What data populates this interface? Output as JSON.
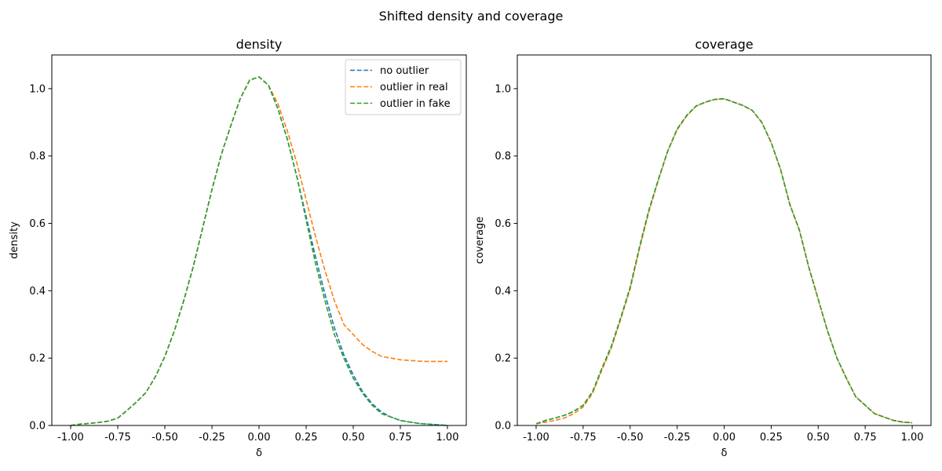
{
  "suptitle": "Shifted density and coverage",
  "colors": {
    "no_outlier": "#1f77b4",
    "outlier_in_real": "#ff7f0e",
    "outlier_in_fake": "#2ca02c"
  },
  "chart_data": [
    {
      "type": "line",
      "title": "density",
      "xlabel": "δ",
      "ylabel": "density",
      "xlim": [
        -1.1,
        1.1
      ],
      "ylim": [
        0.0,
        1.1
      ],
      "xticks": [
        "-1.00",
        "-0.75",
        "-0.50",
        "-0.25",
        "0.00",
        "0.25",
        "0.50",
        "0.75",
        "1.00"
      ],
      "xtick_values": [
        -1.0,
        -0.75,
        -0.5,
        -0.25,
        0.0,
        0.25,
        0.5,
        0.75,
        1.0
      ],
      "yticks": [
        "0.0",
        "0.2",
        "0.4",
        "0.6",
        "0.8",
        "1.0"
      ],
      "ytick_values": [
        0.0,
        0.2,
        0.4,
        0.6,
        0.8,
        1.0
      ],
      "grid": false,
      "legend": "top-right",
      "x": [
        -1.0,
        -0.95,
        -0.9,
        -0.85,
        -0.8,
        -0.75,
        -0.7,
        -0.65,
        -0.6,
        -0.55,
        -0.5,
        -0.45,
        -0.4,
        -0.35,
        -0.3,
        -0.25,
        -0.2,
        -0.15,
        -0.1,
        -0.05,
        0.0,
        0.05,
        0.1,
        0.15,
        0.2,
        0.25,
        0.3,
        0.35,
        0.4,
        0.45,
        0.5,
        0.55,
        0.6,
        0.65,
        0.7,
        0.75,
        0.8,
        0.85,
        0.9,
        0.95,
        1.0
      ],
      "series": [
        {
          "name": "no outlier",
          "values": [
            0.0,
            0.004,
            0.006,
            0.009,
            0.013,
            0.022,
            0.045,
            0.07,
            0.098,
            0.145,
            0.205,
            0.28,
            0.37,
            0.47,
            0.585,
            0.7,
            0.805,
            0.89,
            0.97,
            1.025,
            1.035,
            1.01,
            0.94,
            0.85,
            0.74,
            0.62,
            0.5,
            0.39,
            0.29,
            0.21,
            0.15,
            0.1,
            0.065,
            0.04,
            0.025,
            0.015,
            0.01,
            0.006,
            0.004,
            0.002,
            0.0
          ]
        },
        {
          "name": "outlier in real",
          "values": [
            0.0,
            0.004,
            0.006,
            0.009,
            0.013,
            0.022,
            0.045,
            0.07,
            0.098,
            0.145,
            0.205,
            0.28,
            0.37,
            0.47,
            0.585,
            0.7,
            0.805,
            0.89,
            0.97,
            1.025,
            1.035,
            1.01,
            0.955,
            0.875,
            0.78,
            0.67,
            0.56,
            0.46,
            0.37,
            0.3,
            0.27,
            0.24,
            0.22,
            0.205,
            0.2,
            0.195,
            0.193,
            0.191,
            0.19,
            0.19,
            0.19
          ]
        },
        {
          "name": "outlier in fake",
          "values": [
            0.0,
            0.004,
            0.006,
            0.009,
            0.013,
            0.022,
            0.045,
            0.07,
            0.098,
            0.145,
            0.205,
            0.28,
            0.37,
            0.47,
            0.585,
            0.7,
            0.805,
            0.89,
            0.97,
            1.025,
            1.035,
            1.01,
            0.94,
            0.85,
            0.74,
            0.61,
            0.48,
            0.37,
            0.27,
            0.2,
            0.14,
            0.095,
            0.06,
            0.035,
            0.025,
            0.015,
            0.01,
            0.006,
            0.004,
            0.002,
            0.0
          ]
        }
      ]
    },
    {
      "type": "line",
      "title": "coverage",
      "xlabel": "δ",
      "ylabel": "coverage",
      "xlim": [
        -1.1,
        1.1
      ],
      "ylim": [
        0.0,
        1.1
      ],
      "xticks": [
        "-1.00",
        "-0.75",
        "-0.50",
        "-0.25",
        "0.00",
        "0.25",
        "0.50",
        "0.75",
        "1.00"
      ],
      "xtick_values": [
        -1.0,
        -0.75,
        -0.5,
        -0.25,
        0.0,
        0.25,
        0.5,
        0.75,
        1.0
      ],
      "yticks": [
        "0.0",
        "0.2",
        "0.4",
        "0.6",
        "0.8",
        "1.0"
      ],
      "ytick_values": [
        0.0,
        0.2,
        0.4,
        0.6,
        0.8,
        1.0
      ],
      "grid": false,
      "x": [
        -1.0,
        -0.95,
        -0.9,
        -0.85,
        -0.8,
        -0.75,
        -0.7,
        -0.65,
        -0.6,
        -0.55,
        -0.5,
        -0.45,
        -0.4,
        -0.35,
        -0.3,
        -0.25,
        -0.2,
        -0.15,
        -0.1,
        -0.05,
        0.0,
        0.05,
        0.1,
        0.15,
        0.2,
        0.25,
        0.3,
        0.35,
        0.4,
        0.45,
        0.5,
        0.55,
        0.6,
        0.65,
        0.7,
        0.75,
        0.8,
        0.85,
        0.9,
        0.95,
        1.0
      ],
      "series": [
        {
          "name": "no outlier",
          "values": [
            0.005,
            0.015,
            0.022,
            0.03,
            0.042,
            0.06,
            0.1,
            0.17,
            0.235,
            0.32,
            0.41,
            0.53,
            0.64,
            0.73,
            0.815,
            0.88,
            0.92,
            0.948,
            0.96,
            0.968,
            0.97,
            0.96,
            0.95,
            0.935,
            0.9,
            0.84,
            0.76,
            0.655,
            0.58,
            0.47,
            0.375,
            0.28,
            0.2,
            0.14,
            0.085,
            0.06,
            0.035,
            0.025,
            0.015,
            0.01,
            0.008
          ]
        },
        {
          "name": "outlier in real",
          "values": [
            0.005,
            0.01,
            0.015,
            0.022,
            0.035,
            0.055,
            0.095,
            0.165,
            0.23,
            0.315,
            0.405,
            0.525,
            0.635,
            0.728,
            0.815,
            0.878,
            0.918,
            0.948,
            0.96,
            0.968,
            0.97,
            0.96,
            0.95,
            0.935,
            0.9,
            0.84,
            0.76,
            0.655,
            0.58,
            0.47,
            0.375,
            0.28,
            0.2,
            0.14,
            0.085,
            0.06,
            0.035,
            0.025,
            0.015,
            0.01,
            0.008
          ]
        },
        {
          "name": "outlier in fake",
          "values": [
            0.005,
            0.015,
            0.022,
            0.03,
            0.042,
            0.06,
            0.1,
            0.17,
            0.235,
            0.32,
            0.41,
            0.53,
            0.64,
            0.73,
            0.815,
            0.88,
            0.92,
            0.948,
            0.96,
            0.968,
            0.97,
            0.96,
            0.95,
            0.935,
            0.9,
            0.84,
            0.76,
            0.655,
            0.58,
            0.47,
            0.375,
            0.28,
            0.2,
            0.14,
            0.085,
            0.06,
            0.035,
            0.025,
            0.015,
            0.01,
            0.008
          ]
        }
      ]
    }
  ]
}
